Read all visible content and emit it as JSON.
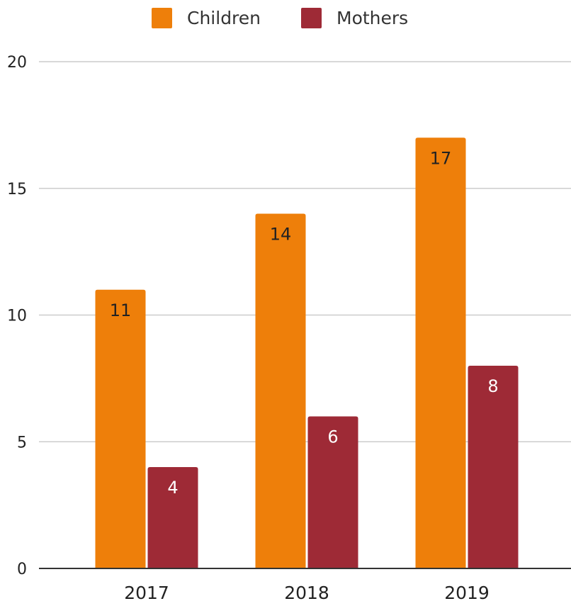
{
  "chart_data": {
    "type": "bar",
    "title": "",
    "xlabel": "",
    "ylabel": "",
    "categories": [
      "2017",
      "2018",
      "2019"
    ],
    "series": [
      {
        "name": "Children",
        "color": "#ee7f0a",
        "values": [
          11,
          14,
          17
        ],
        "label_color": "#222222"
      },
      {
        "name": "Mothers",
        "color": "#9e2a36",
        "values": [
          4,
          6,
          8
        ],
        "label_color": "#ffffff"
      }
    ],
    "ylim": [
      0,
      20
    ],
    "yticks": [
      "0",
      "5",
      "10",
      "15",
      "20"
    ],
    "grid": true,
    "legend": "top-center",
    "data_labels": true
  }
}
